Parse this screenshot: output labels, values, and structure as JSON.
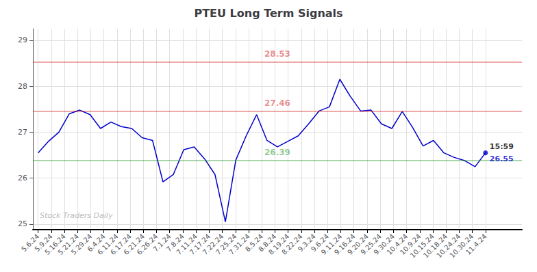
{
  "chart_data": {
    "type": "line",
    "title": "PTEU Long Term Signals",
    "x": [
      0,
      1,
      2,
      3,
      4,
      5,
      6,
      7,
      8,
      9,
      10,
      11,
      12,
      13,
      14,
      15,
      16,
      17,
      18,
      19,
      20,
      21,
      22,
      23,
      24,
      25,
      26,
      27,
      28,
      29,
      30,
      31,
      32,
      33,
      34,
      35,
      36,
      37,
      38,
      39,
      40,
      41,
      42,
      43
    ],
    "values": [
      26.55,
      26.8,
      27.0,
      27.4,
      27.48,
      27.38,
      27.08,
      27.22,
      27.12,
      27.08,
      26.88,
      26.82,
      25.92,
      26.08,
      26.62,
      26.68,
      26.42,
      26.08,
      25.05,
      26.39,
      26.92,
      27.38,
      26.82,
      26.68,
      26.8,
      26.92,
      27.18,
      27.46,
      27.55,
      28.15,
      27.78,
      27.46,
      27.48,
      27.18,
      27.08,
      27.45,
      27.1,
      26.7,
      26.82,
      26.55,
      26.45,
      26.38,
      26.25,
      26.55
    ],
    "color": "#0000cc",
    "xlim": [
      -0.5,
      46.5
    ],
    "xticks": [
      {
        "value": 0,
        "label": "5.6.24"
      },
      {
        "value": 1.264706,
        "label": "5.9.24"
      },
      {
        "value": 2.529412,
        "label": "5.16.24"
      },
      {
        "value": 3.794118,
        "label": "5.21.24"
      },
      {
        "value": 5.058824,
        "label": "5.29.24"
      },
      {
        "value": 6.323529,
        "label": "6.4.24"
      },
      {
        "value": 7.588235,
        "label": "6.11.24"
      },
      {
        "value": 8.852941,
        "label": "6.17.24"
      },
      {
        "value": 10.117647,
        "label": "6.21.24"
      },
      {
        "value": 11.382353,
        "label": "6.26.24"
      },
      {
        "value": 12.647059,
        "label": "7.1.24"
      },
      {
        "value": 13.911765,
        "label": "7.8.24"
      },
      {
        "value": 15.176471,
        "label": "7.11.24"
      },
      {
        "value": 16.441176,
        "label": "7.17.24"
      },
      {
        "value": 17.705882,
        "label": "7.22.24"
      },
      {
        "value": 18.970588,
        "label": "7.25.24"
      },
      {
        "value": 20.235294,
        "label": "7.31.24"
      },
      {
        "value": 21.5,
        "label": "8.5.24"
      },
      {
        "value": 22.764706,
        "label": "8.8.24"
      },
      {
        "value": 24.029412,
        "label": "8.19.24"
      },
      {
        "value": 25.294118,
        "label": "8.22.24"
      },
      {
        "value": 26.558824,
        "label": "9.3.24"
      },
      {
        "value": 27.823529,
        "label": "9.6.24"
      },
      {
        "value": 29.088235,
        "label": "9.11.24"
      },
      {
        "value": 30.352941,
        "label": "9.16.24"
      },
      {
        "value": 31.617647,
        "label": "9.20.24"
      },
      {
        "value": 32.882353,
        "label": "9.25.24"
      },
      {
        "value": 34.147059,
        "label": "9.30.24"
      },
      {
        "value": 35.411765,
        "label": "10.4.24"
      },
      {
        "value": 36.676471,
        "label": "10.9.24"
      },
      {
        "value": 37.941176,
        "label": "10.15.24"
      },
      {
        "value": 39.205882,
        "label": "10.18.24"
      },
      {
        "value": 40.470588,
        "label": "10.24.24"
      },
      {
        "value": 41.735294,
        "label": "10.30.24"
      },
      {
        "value": 43,
        "label": "11.4.24"
      }
    ],
    "ylim": [
      24.88,
      29.25
    ],
    "yticks": [
      25,
      26,
      27,
      28,
      29
    ],
    "grid": true,
    "hlines": [
      {
        "value": 28.53,
        "label": "28.53",
        "color": "#cc0000"
      },
      {
        "value": 27.46,
        "label": "27.46",
        "color": "#cc0000"
      },
      {
        "value": 26.39,
        "label": "26.39",
        "color": "#008800"
      }
    ],
    "annotations": [
      {
        "text": "15:59",
        "x": 43,
        "y": 26.55,
        "color": "#000000"
      },
      {
        "text": "26.55",
        "x": 43,
        "y": 26.55,
        "color": "#0000cc"
      }
    ],
    "watermark": "Stock Traders Daily"
  }
}
